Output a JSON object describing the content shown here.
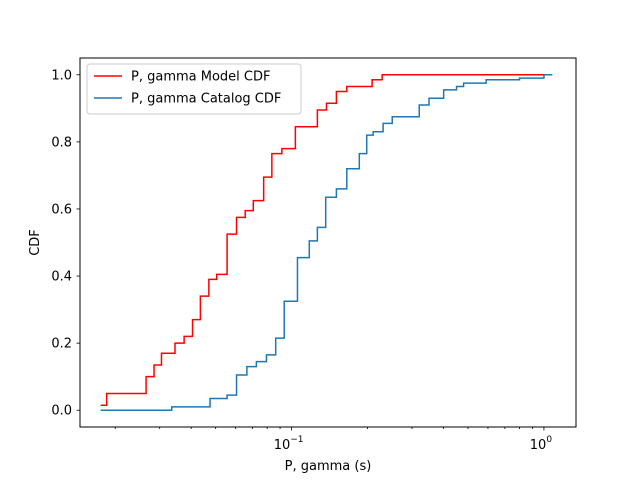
{
  "colors": {
    "model": "#ff0000",
    "catalog": "#1f77b4",
    "axes": "#000000",
    "background": "#ffffff"
  },
  "chart_data": {
    "type": "line",
    "xscale": "log",
    "xlabel": "P, gamma (s)",
    "ylabel": "CDF",
    "xlim": [
      0.0145,
      1.34
    ],
    "ylim": [
      -0.05,
      1.05
    ],
    "x_ticks": [
      {
        "value": 0.1,
        "base": "10",
        "exp": "−1"
      },
      {
        "value": 1.0,
        "base": "10",
        "exp": "0"
      }
    ],
    "y_ticks": [
      {
        "value": 0.0,
        "label": "0.0"
      },
      {
        "value": 0.2,
        "label": "0.2"
      },
      {
        "value": 0.4,
        "label": "0.4"
      },
      {
        "value": 0.6,
        "label": "0.6"
      },
      {
        "value": 0.8,
        "label": "0.8"
      },
      {
        "value": 1.0,
        "label": "1.0"
      }
    ],
    "grid": false,
    "legend": "top-left",
    "series": [
      {
        "name": "P, gamma Model CDF",
        "color": "#ff0000",
        "step": "post",
        "x": [
          0.0175,
          0.0185,
          0.0265,
          0.0285,
          0.0305,
          0.0345,
          0.0375,
          0.0405,
          0.0435,
          0.047,
          0.0505,
          0.0555,
          0.0605,
          0.0655,
          0.0705,
          0.0775,
          0.0835,
          0.0915,
          0.1035,
          0.1265,
          0.1375,
          0.1505,
          0.1655,
          0.1785,
          0.2085,
          0.2285,
          1.0
        ],
        "y": [
          0.015,
          0.05,
          0.1,
          0.135,
          0.17,
          0.2,
          0.22,
          0.27,
          0.34,
          0.39,
          0.405,
          0.525,
          0.575,
          0.595,
          0.625,
          0.695,
          0.765,
          0.78,
          0.845,
          0.895,
          0.915,
          0.95,
          0.965,
          0.965,
          0.985,
          1.0,
          1.0
        ]
      },
      {
        "name": "P, gamma Catalog CDF",
        "color": "#1f77b4",
        "step": "post",
        "x": [
          0.0175,
          0.0335,
          0.0475,
          0.0555,
          0.0605,
          0.0665,
          0.0725,
          0.0795,
          0.0865,
          0.0935,
          0.1055,
          0.1175,
          0.1265,
          0.1365,
          0.1505,
          0.1655,
          0.1855,
          0.1985,
          0.2105,
          0.2305,
          0.2505,
          0.3205,
          0.3505,
          0.4005,
          0.4505,
          0.4805,
          0.5905,
          0.8005,
          1.0005,
          1.0805
        ],
        "y": [
          0.0,
          0.01,
          0.035,
          0.045,
          0.105,
          0.13,
          0.145,
          0.165,
          0.215,
          0.325,
          0.455,
          0.505,
          0.545,
          0.635,
          0.66,
          0.72,
          0.765,
          0.82,
          0.83,
          0.855,
          0.875,
          0.91,
          0.93,
          0.955,
          0.965,
          0.975,
          0.985,
          0.99,
          1.0,
          1.0
        ]
      }
    ]
  }
}
